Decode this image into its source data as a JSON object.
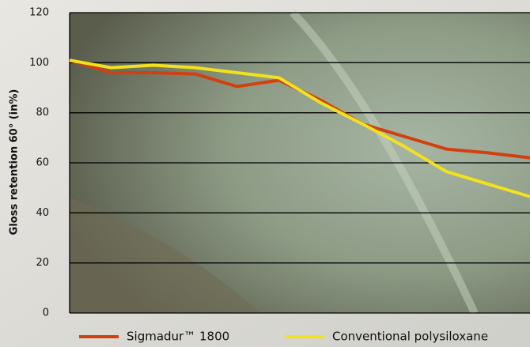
{
  "chart_data": {
    "type": "line",
    "y_label": "Gloss retention 60° (in%)",
    "categories": [
      null,
      null,
      null,
      null,
      null,
      null,
      null,
      null,
      null,
      null,
      null,
      null
    ],
    "series": [
      {
        "name": "Sigmadur™ 1800",
        "color": "#d2400f",
        "values": [
          101,
          96,
          96,
          95.5,
          90.5,
          93,
          85,
          75.5,
          70.5,
          65.5,
          64,
          62
        ]
      },
      {
        "name": "Conventional polysiloxane",
        "color": "#f2e21c",
        "values": [
          101,
          98,
          99,
          98,
          96,
          94,
          84,
          75.5,
          66.5,
          56.5,
          51.5,
          46.5
        ]
      }
    ],
    "ylim": [
      0,
      120
    ],
    "yticks": [
      0,
      20,
      40,
      60,
      80,
      100,
      120
    ],
    "grid": true
  }
}
